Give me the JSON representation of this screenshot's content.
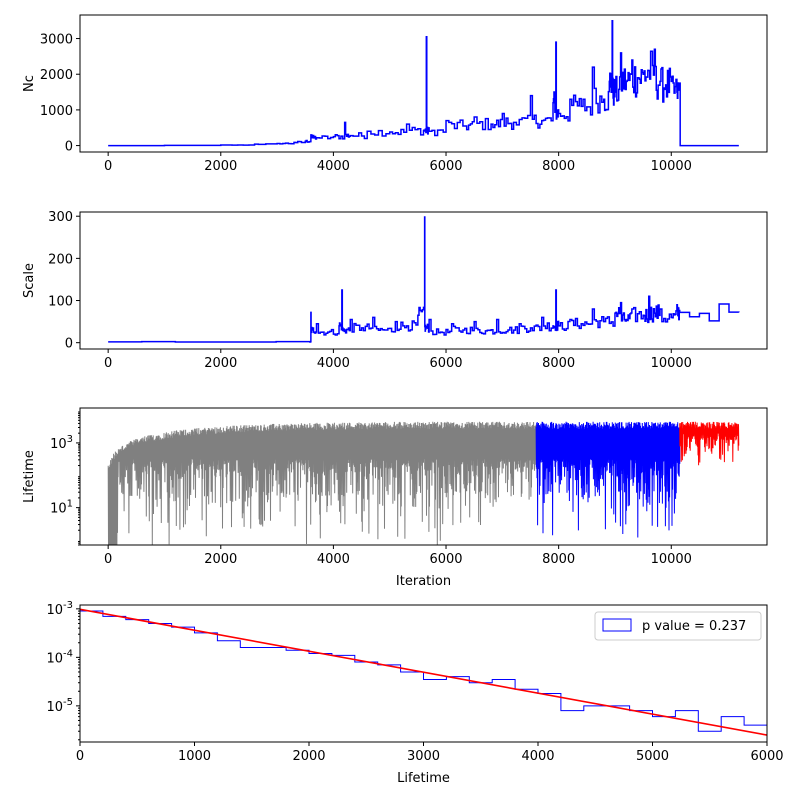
{
  "chart_data": [
    {
      "type": "line",
      "ylabel": "Nc",
      "xlim": [
        -500,
        11700
      ],
      "ylim": [
        -180,
        3660
      ],
      "xticks": [
        0,
        2000,
        4000,
        6000,
        8000,
        10000
      ],
      "yticks": [
        0,
        1000,
        2000,
        3000
      ],
      "color": "#0000ff",
      "series": [
        {
          "x": [
            0,
            1000,
            2000,
            2600,
            3000,
            3300,
            3500,
            3600,
            3700,
            4000,
            4200,
            4300,
            4600,
            5000,
            5300,
            5600,
            5650,
            5700,
            6000,
            6300,
            6500,
            6800,
            7000,
            7200,
            7500,
            7700,
            7900,
            7950,
            8000,
            8200,
            8400,
            8600,
            8800,
            8900,
            8950,
            9000,
            9100,
            9200,
            9300,
            9400,
            9500,
            9600,
            9700,
            9800,
            9900,
            10000,
            10100,
            10150,
            10200,
            11200
          ],
          "y": [
            0,
            5,
            15,
            40,
            60,
            90,
            120,
            300,
            220,
            250,
            650,
            280,
            400,
            380,
            600,
            420,
            3050,
            400,
            700,
            550,
            800,
            600,
            900,
            650,
            1400,
            700,
            1200,
            2900,
            900,
            1300,
            1100,
            2200,
            1300,
            1800,
            3500,
            1500,
            2600,
            1800,
            2400,
            1900,
            2000,
            2100,
            2700,
            1800,
            1700,
            1800,
            1500,
            1750,
            0,
            0
          ]
        }
      ]
    },
    {
      "type": "line",
      "ylabel": "Scale",
      "xlim": [
        -500,
        11700
      ],
      "ylim": [
        -15,
        310
      ],
      "xticks": [
        0,
        2000,
        4000,
        6000,
        8000,
        10000
      ],
      "yticks": [
        0,
        100,
        200,
        300
      ],
      "color": "#0000ff",
      "series": [
        {
          "x": [
            0,
            3580,
            3600,
            3620,
            3700,
            3900,
            4100,
            4150,
            4200,
            4300,
            4500,
            4700,
            4900,
            5100,
            5300,
            5500,
            5620,
            5640,
            5700,
            5900,
            6100,
            6300,
            6500,
            6700,
            6900,
            7100,
            7300,
            7500,
            7700,
            7900,
            7950,
            8000,
            8200,
            8400,
            8600,
            8800,
            9000,
            9100,
            9200,
            9300,
            9500,
            9600,
            9700,
            9800,
            10000,
            10100,
            10150,
            11200
          ],
          "y": [
            2,
            2,
            72,
            30,
            45,
            25,
            40,
            125,
            30,
            55,
            35,
            60,
            30,
            50,
            40,
            65,
            298,
            35,
            55,
            25,
            45,
            30,
            50,
            28,
            55,
            30,
            45,
            35,
            60,
            40,
            125,
            40,
            55,
            45,
            80,
            50,
            70,
            95,
            55,
            80,
            65,
            110,
            70,
            80,
            60,
            90,
            72,
            72
          ]
        }
      ]
    },
    {
      "type": "line",
      "ylabel": "Lifetime",
      "xlabel": "Iteration",
      "xlim": [
        -500,
        11700
      ],
      "yscale": "log",
      "ylim": [
        0.7,
        12000
      ],
      "xticks": [
        0,
        2000,
        4000,
        6000,
        8000,
        10000
      ],
      "yticks": [
        10,
        1000
      ],
      "ytick_labels": [
        "10^1",
        "10^3"
      ],
      "segments": [
        {
          "x_start": 0,
          "x_end": 7600,
          "color": "#808080"
        },
        {
          "x_start": 7600,
          "x_end": 10150,
          "color": "#0000ff"
        },
        {
          "x_start": 10150,
          "x_end": 11200,
          "color": "#ff0000"
        }
      ]
    },
    {
      "type": "histogram",
      "xlabel": "Lifetime",
      "xlim": [
        0,
        6000
      ],
      "yscale": "log",
      "ylim": [
        1.8e-06,
        0.0012
      ],
      "xticks": [
        0,
        1000,
        2000,
        3000,
        4000,
        5000,
        6000
      ],
      "yticks": [
        1e-05,
        0.0001,
        0.001
      ],
      "ytick_labels": [
        "10^-5",
        "10^-4",
        "10^-3"
      ],
      "legend": {
        "label": "p value = 0.237",
        "position": "top-right"
      },
      "bin_edges": [
        0,
        200,
        400,
        600,
        800,
        1000,
        1200,
        1400,
        1600,
        1800,
        2000,
        2200,
        2400,
        2600,
        2800,
        3000,
        3200,
        3400,
        3600,
        3800,
        4000,
        4200,
        4400,
        4600,
        4800,
        5000,
        5200,
        5400,
        5600,
        5800,
        6000
      ],
      "counts": [
        0.0009,
        0.0007,
        0.0006,
        0.0005,
        0.00042,
        0.00032,
        0.00022,
        0.00016,
        0.00016,
        0.00014,
        0.00012,
        0.00011,
        8e-05,
        7e-05,
        5e-05,
        3.5e-05,
        4e-05,
        3e-05,
        3.5e-05,
        2.2e-05,
        1.8e-05,
        8e-06,
        1e-05,
        1e-05,
        8e-06,
        6e-06,
        8e-06,
        3e-06,
        6e-06,
        4e-06
      ],
      "hist_color": "#0000ff",
      "fit": {
        "x": [
          0,
          6000
        ],
        "y": [
          0.00098,
          2.5e-06
        ],
        "color": "#ff0000"
      }
    }
  ]
}
